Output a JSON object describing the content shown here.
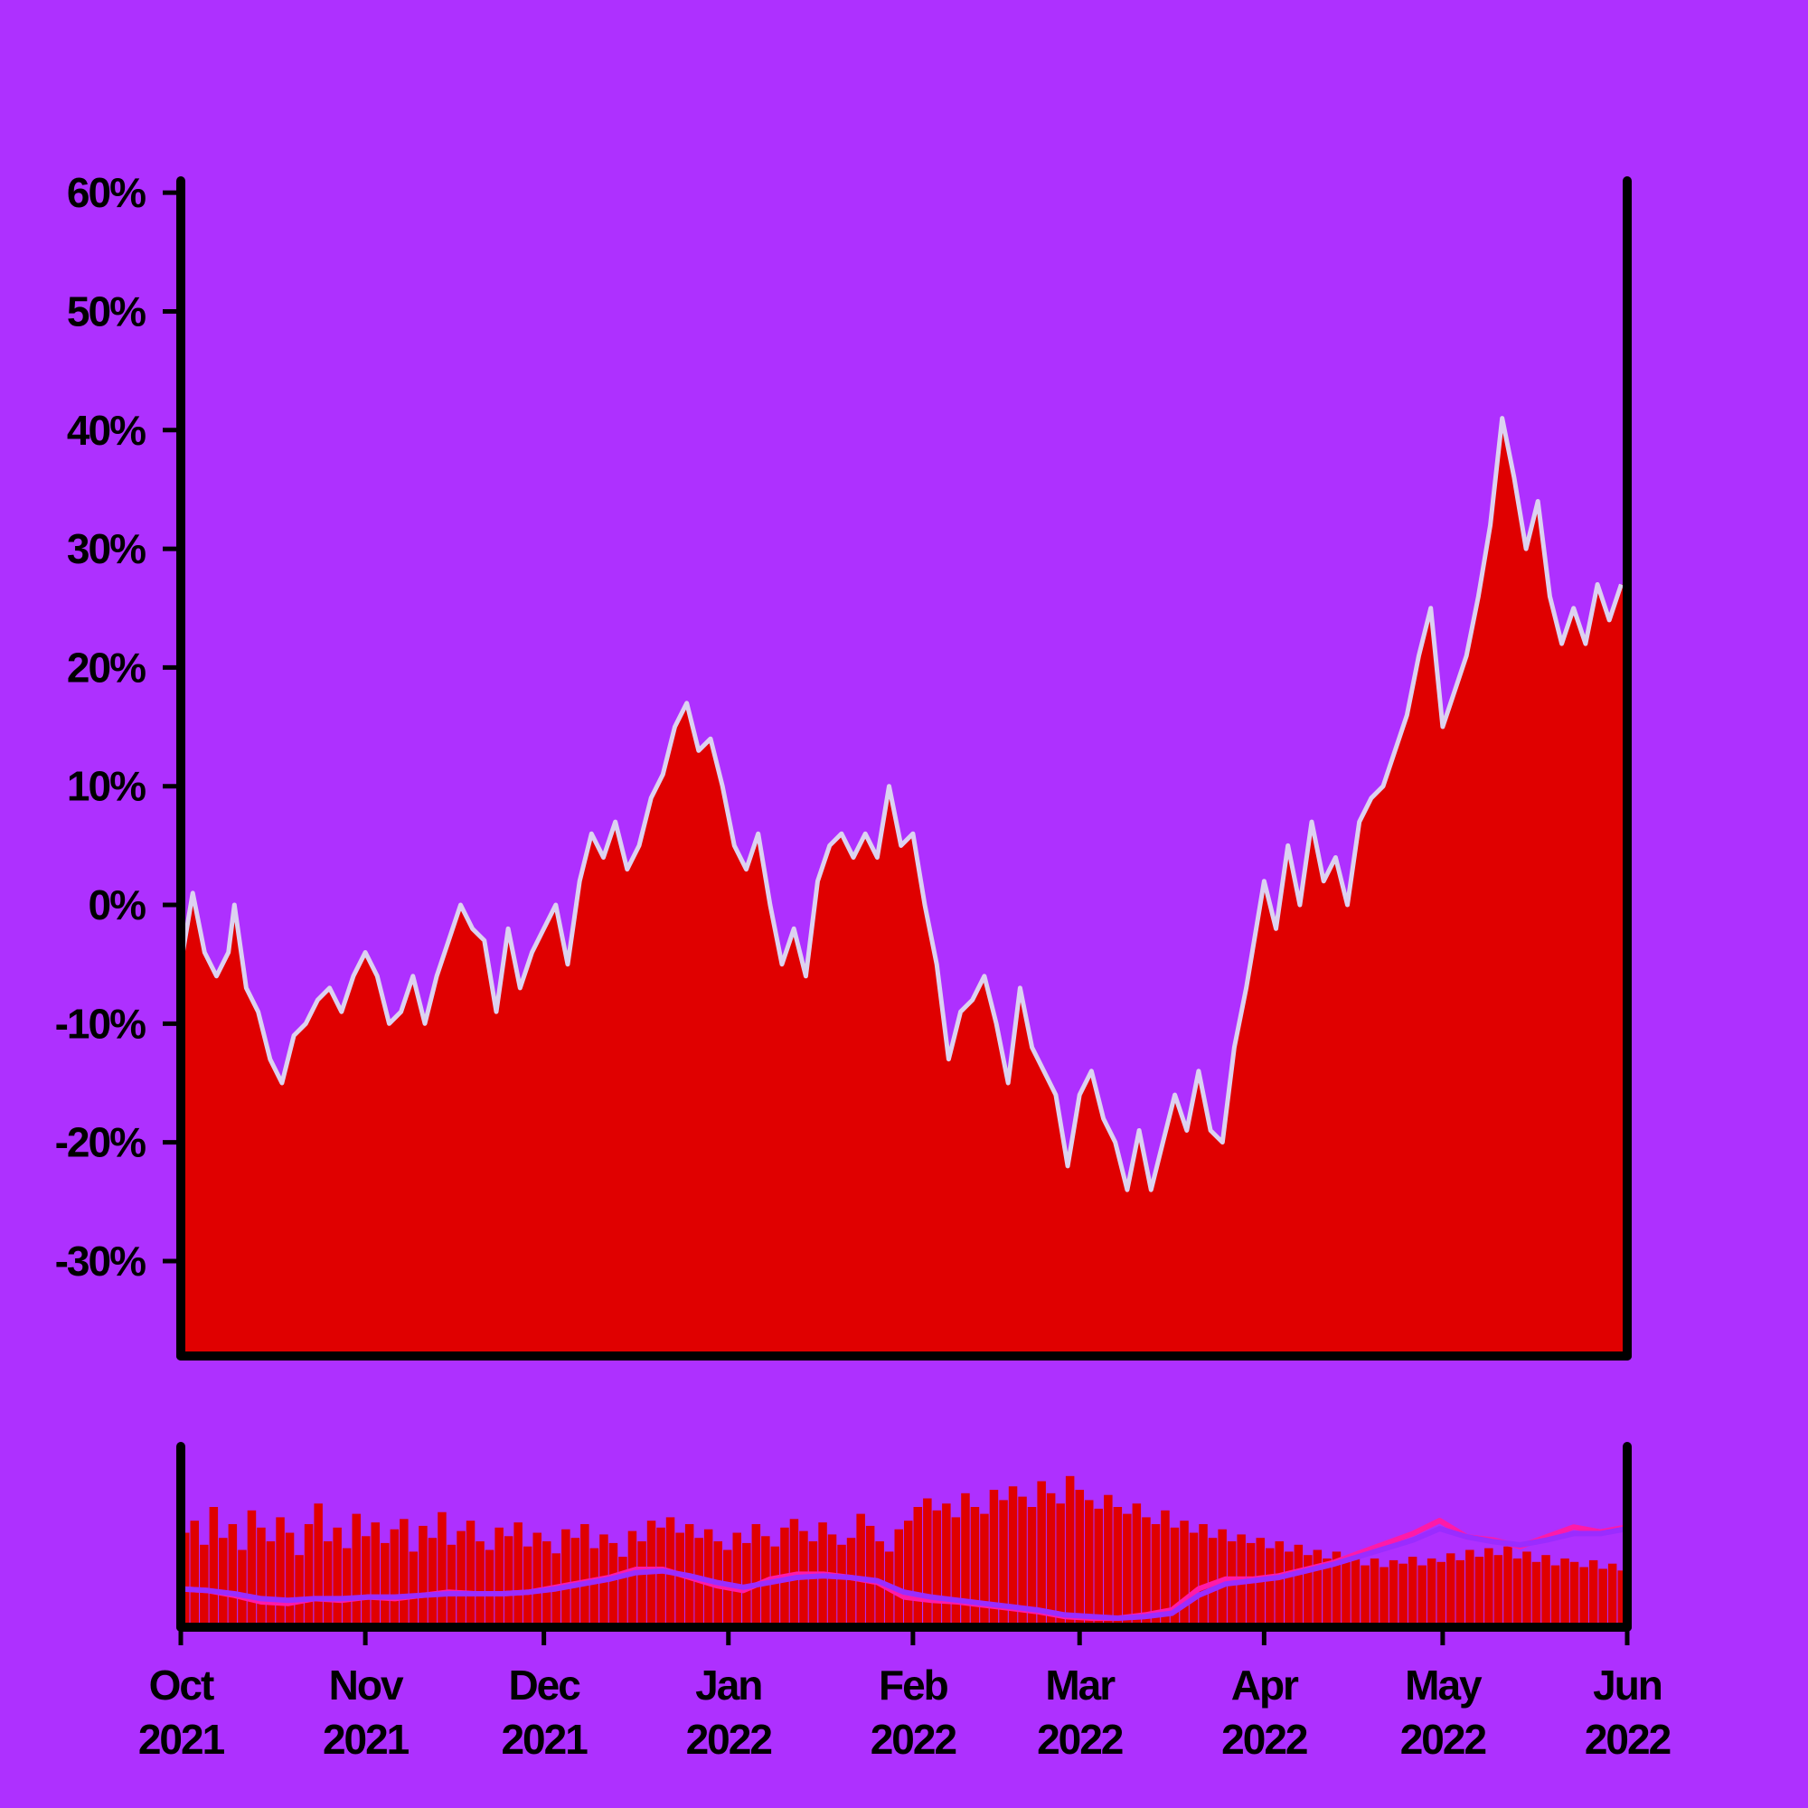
{
  "chart_data": [
    {
      "type": "area",
      "title": "",
      "xlabel": "",
      "ylabel": "",
      "x_range": [
        "2021-10-01",
        "2022-06-01"
      ],
      "ylim": [
        -0.38,
        0.61
      ],
      "y_ticks": [
        {
          "value": 0.6,
          "label": "60%"
        },
        {
          "value": 0.5,
          "label": "50%"
        },
        {
          "value": 0.4,
          "label": "40%"
        },
        {
          "value": 0.3,
          "label": "30%"
        },
        {
          "value": 0.2,
          "label": "20%"
        },
        {
          "value": 0.1,
          "label": "10%"
        },
        {
          "value": 0.0,
          "label": "0%"
        },
        {
          "value": -0.1,
          "label": "-10%"
        },
        {
          "value": -0.2,
          "label": "-20%"
        },
        {
          "value": -0.3,
          "label": "-30%"
        }
      ],
      "grid": false,
      "colors": {
        "area": "#e00000",
        "line": "#dcd2f0"
      },
      "series": [
        {
          "points": [
            [
              "2021-10-01",
              -0.05
            ],
            [
              "2021-10-03",
              0.01
            ],
            [
              "2021-10-05",
              -0.04
            ],
            [
              "2021-10-07",
              -0.06
            ],
            [
              "2021-10-09",
              -0.04
            ],
            [
              "2021-10-10",
              0.0
            ],
            [
              "2021-10-12",
              -0.07
            ],
            [
              "2021-10-14",
              -0.09
            ],
            [
              "2021-10-16",
              -0.13
            ],
            [
              "2021-10-18",
              -0.15
            ],
            [
              "2021-10-20",
              -0.11
            ],
            [
              "2021-10-22",
              -0.1
            ],
            [
              "2021-10-24",
              -0.08
            ],
            [
              "2021-10-26",
              -0.07
            ],
            [
              "2021-10-28",
              -0.09
            ],
            [
              "2021-10-30",
              -0.06
            ],
            [
              "2021-11-01",
              -0.04
            ],
            [
              "2021-11-03",
              -0.06
            ],
            [
              "2021-11-05",
              -0.1
            ],
            [
              "2021-11-07",
              -0.09
            ],
            [
              "2021-11-09",
              -0.06
            ],
            [
              "2021-11-11",
              -0.1
            ],
            [
              "2021-11-13",
              -0.06
            ],
            [
              "2021-11-15",
              -0.03
            ],
            [
              "2021-11-17",
              0.0
            ],
            [
              "2021-11-19",
              -0.02
            ],
            [
              "2021-11-21",
              -0.03
            ],
            [
              "2021-11-23",
              -0.09
            ],
            [
              "2021-11-25",
              -0.02
            ],
            [
              "2021-11-27",
              -0.07
            ],
            [
              "2021-11-29",
              -0.04
            ],
            [
              "2021-12-01",
              -0.02
            ],
            [
              "2021-12-03",
              0.0
            ],
            [
              "2021-12-05",
              -0.05
            ],
            [
              "2021-12-07",
              0.02
            ],
            [
              "2021-12-09",
              0.06
            ],
            [
              "2021-12-11",
              0.04
            ],
            [
              "2021-12-13",
              0.07
            ],
            [
              "2021-12-15",
              0.03
            ],
            [
              "2021-12-17",
              0.05
            ],
            [
              "2021-12-19",
              0.09
            ],
            [
              "2021-12-21",
              0.11
            ],
            [
              "2021-12-23",
              0.15
            ],
            [
              "2021-12-25",
              0.17
            ],
            [
              "2021-12-27",
              0.13
            ],
            [
              "2021-12-29",
              0.14
            ],
            [
              "2021-12-31",
              0.1
            ],
            [
              "2022-01-02",
              0.05
            ],
            [
              "2022-01-04",
              0.03
            ],
            [
              "2022-01-06",
              0.06
            ],
            [
              "2022-01-08",
              0.0
            ],
            [
              "2022-01-10",
              -0.05
            ],
            [
              "2022-01-12",
              -0.02
            ],
            [
              "2022-01-14",
              -0.06
            ],
            [
              "2022-01-16",
              0.02
            ],
            [
              "2022-01-18",
              0.05
            ],
            [
              "2022-01-20",
              0.06
            ],
            [
              "2022-01-22",
              0.04
            ],
            [
              "2022-01-24",
              0.06
            ],
            [
              "2022-01-26",
              0.04
            ],
            [
              "2022-01-28",
              0.1
            ],
            [
              "2022-01-30",
              0.05
            ],
            [
              "2022-02-01",
              0.06
            ],
            [
              "2022-02-03",
              0.0
            ],
            [
              "2022-02-05",
              -0.05
            ],
            [
              "2022-02-07",
              -0.13
            ],
            [
              "2022-02-09",
              -0.09
            ],
            [
              "2022-02-11",
              -0.08
            ],
            [
              "2022-02-13",
              -0.06
            ],
            [
              "2022-02-15",
              -0.1
            ],
            [
              "2022-02-17",
              -0.15
            ],
            [
              "2022-02-19",
              -0.07
            ],
            [
              "2022-02-21",
              -0.12
            ],
            [
              "2022-02-23",
              -0.14
            ],
            [
              "2022-02-25",
              -0.16
            ],
            [
              "2022-02-27",
              -0.22
            ],
            [
              "2022-03-01",
              -0.16
            ],
            [
              "2022-03-03",
              -0.14
            ],
            [
              "2022-03-05",
              -0.18
            ],
            [
              "2022-03-07",
              -0.2
            ],
            [
              "2022-03-09",
              -0.24
            ],
            [
              "2022-03-11",
              -0.19
            ],
            [
              "2022-03-13",
              -0.24
            ],
            [
              "2022-03-15",
              -0.2
            ],
            [
              "2022-03-17",
              -0.16
            ],
            [
              "2022-03-19",
              -0.19
            ],
            [
              "2022-03-21",
              -0.14
            ],
            [
              "2022-03-23",
              -0.19
            ],
            [
              "2022-03-25",
              -0.2
            ],
            [
              "2022-03-27",
              -0.12
            ],
            [
              "2022-03-29",
              -0.07
            ],
            [
              "2022-03-31",
              -0.01
            ],
            [
              "2022-04-01",
              0.02
            ],
            [
              "2022-04-03",
              -0.02
            ],
            [
              "2022-04-05",
              0.05
            ],
            [
              "2022-04-07",
              0.0
            ],
            [
              "2022-04-09",
              0.07
            ],
            [
              "2022-04-11",
              0.02
            ],
            [
              "2022-04-13",
              0.04
            ],
            [
              "2022-04-15",
              0.0
            ],
            [
              "2022-04-17",
              0.07
            ],
            [
              "2022-04-19",
              0.09
            ],
            [
              "2022-04-21",
              0.1
            ],
            [
              "2022-04-23",
              0.13
            ],
            [
              "2022-04-25",
              0.16
            ],
            [
              "2022-04-27",
              0.21
            ],
            [
              "2022-04-29",
              0.25
            ],
            [
              "2022-05-01",
              0.15
            ],
            [
              "2022-05-03",
              0.18
            ],
            [
              "2022-05-05",
              0.21
            ],
            [
              "2022-05-07",
              0.26
            ],
            [
              "2022-05-09",
              0.32
            ],
            [
              "2022-05-11",
              0.41
            ],
            [
              "2022-05-13",
              0.36
            ],
            [
              "2022-05-15",
              0.3
            ],
            [
              "2022-05-17",
              0.34
            ],
            [
              "2022-05-19",
              0.26
            ],
            [
              "2022-05-21",
              0.22
            ],
            [
              "2022-05-23",
              0.25
            ],
            [
              "2022-05-25",
              0.22
            ],
            [
              "2022-05-27",
              0.27
            ],
            [
              "2022-05-29",
              0.24
            ],
            [
              "2022-05-31",
              0.27
            ]
          ]
        }
      ]
    },
    {
      "type": "bar",
      "title": "",
      "xlabel": "",
      "ylabel": "",
      "x_range": [
        "2021-10-01",
        "2022-06-01"
      ],
      "x_ticks": [
        {
          "date": "2021-10-01",
          "month": "Oct",
          "year": "2021"
        },
        {
          "date": "2021-11-01",
          "month": "Nov",
          "year": "2021"
        },
        {
          "date": "2021-12-01",
          "month": "Dec",
          "year": "2021"
        },
        {
          "date": "2022-01-01",
          "month": "Jan",
          "year": "2022"
        },
        {
          "date": "2022-02-01",
          "month": "Feb",
          "year": "2022"
        },
        {
          "date": "2022-03-01",
          "month": "Mar",
          "year": "2022"
        },
        {
          "date": "2022-04-01",
          "month": "Apr",
          "year": "2022"
        },
        {
          "date": "2022-05-01",
          "month": "May",
          "year": "2022"
        },
        {
          "date": "2022-06-01",
          "month": "Jun",
          "year": "2022"
        }
      ],
      "colors": {
        "bars": "#e00000",
        "fast_line": "#ff1aa8",
        "slow_line": "#9a2cff"
      },
      "bars_note_values": [
        0.55,
        0.62,
        0.48,
        0.7,
        0.52,
        0.6,
        0.45,
        0.68,
        0.58,
        0.5,
        0.64,
        0.55,
        0.42,
        0.6,
        0.72,
        0.5,
        0.58,
        0.46,
        0.66,
        0.53,
        0.61,
        0.49,
        0.57,
        0.63,
        0.44,
        0.59,
        0.52,
        0.67,
        0.48,
        0.56,
        0.62,
        0.5,
        0.45,
        0.58,
        0.53,
        0.61,
        0.47,
        0.55,
        0.5,
        0.43,
        0.57,
        0.52,
        0.6,
        0.46,
        0.54,
        0.49,
        0.41,
        0.56,
        0.5,
        0.62,
        0.58,
        0.64,
        0.55,
        0.6,
        0.52,
        0.57,
        0.5,
        0.45,
        0.55,
        0.49,
        0.6,
        0.53,
        0.47,
        0.58,
        0.63,
        0.56,
        0.5,
        0.61,
        0.54,
        0.48,
        0.52,
        0.66,
        0.59,
        0.5,
        0.44,
        0.57,
        0.62,
        0.7,
        0.75,
        0.68,
        0.72,
        0.64,
        0.78,
        0.7,
        0.66,
        0.8,
        0.74,
        0.82,
        0.76,
        0.7,
        0.85,
        0.78,
        0.72,
        0.88,
        0.8,
        0.74,
        0.69,
        0.77,
        0.7,
        0.66,
        0.72,
        0.64,
        0.6,
        0.68,
        0.58,
        0.62,
        0.55,
        0.6,
        0.52,
        0.57,
        0.5,
        0.54,
        0.49,
        0.52,
        0.46,
        0.5,
        0.44,
        0.48,
        0.42,
        0.45,
        0.4,
        0.44,
        0.38,
        0.42,
        0.36,
        0.4,
        0.35,
        0.39,
        0.37,
        0.41,
        0.36,
        0.4,
        0.38,
        0.43,
        0.39,
        0.45,
        0.41,
        0.46,
        0.42,
        0.47,
        0.4,
        0.44,
        0.38,
        0.42,
        0.36,
        0.4,
        0.38,
        0.35,
        0.39,
        0.34,
        0.37,
        0.33
      ],
      "series": [
        {
          "values_fast": [
            0.18,
            0.17,
            0.14,
            0.1,
            0.09,
            0.12,
            0.11,
            0.13,
            0.12,
            0.14,
            0.16,
            0.15,
            0.15,
            0.16,
            0.19,
            0.22,
            0.25,
            0.3,
            0.3,
            0.25,
            0.2,
            0.17,
            0.24,
            0.27,
            0.27,
            0.25,
            0.22,
            0.13,
            0.11,
            0.1,
            0.08,
            0.06,
            0.04,
            0.01,
            0.0,
            0.0,
            0.02,
            0.05,
            0.18,
            0.24,
            0.24,
            0.26,
            0.3,
            0.34,
            0.4,
            0.46,
            0.52,
            0.6,
            0.5,
            0.48,
            0.44,
            0.5,
            0.56,
            0.53,
            0.56
          ]
        },
        {
          "values_slow": [
            0.18,
            0.17,
            0.15,
            0.12,
            0.11,
            0.12,
            0.12,
            0.13,
            0.13,
            0.14,
            0.15,
            0.15,
            0.15,
            0.16,
            0.18,
            0.21,
            0.24,
            0.28,
            0.29,
            0.26,
            0.22,
            0.19,
            0.22,
            0.25,
            0.26,
            0.25,
            0.23,
            0.16,
            0.13,
            0.11,
            0.09,
            0.07,
            0.05,
            0.02,
            0.01,
            0.0,
            0.01,
            0.03,
            0.14,
            0.21,
            0.23,
            0.25,
            0.29,
            0.33,
            0.38,
            0.43,
            0.48,
            0.55,
            0.5,
            0.47,
            0.45,
            0.48,
            0.52,
            0.52,
            0.55
          ]
        }
      ]
    }
  ]
}
